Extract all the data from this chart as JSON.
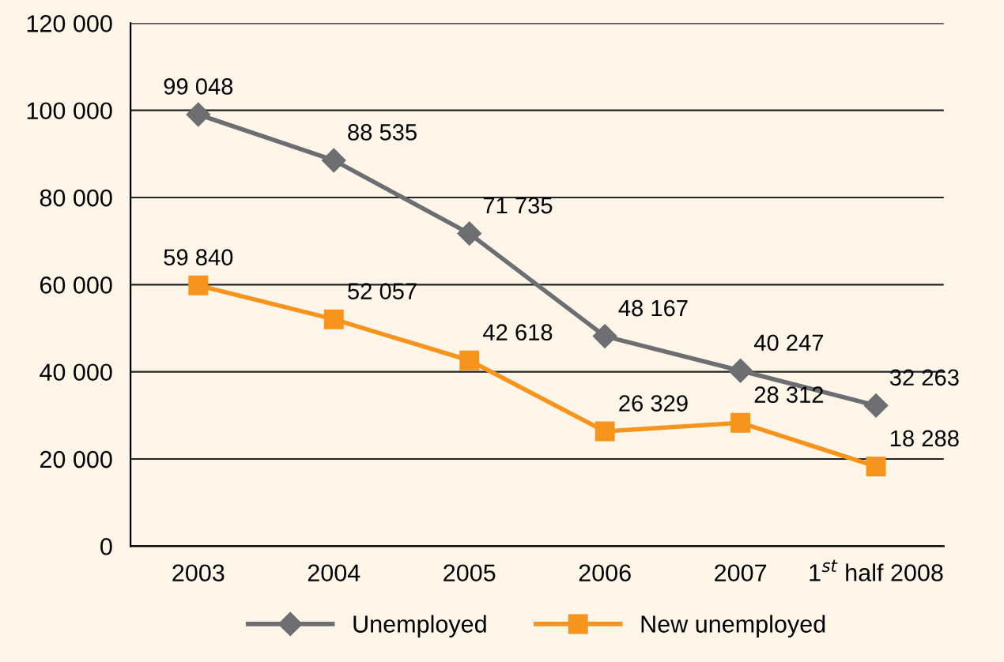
{
  "chart_data": {
    "type": "line",
    "categories": [
      "2003",
      "2004",
      "2005",
      "2006",
      "2007",
      "1$^{st}$ half 2008"
    ],
    "series": [
      {
        "name": "Unemployed",
        "color": "#6d6e71",
        "marker": "diamond",
        "values": [
          99048,
          88535,
          71735,
          48167,
          40247,
          32263
        ],
        "value_labels": [
          "99 048",
          "88 535",
          "71 735",
          "48 167",
          "40 247",
          "32 263"
        ]
      },
      {
        "name": "New unemployed",
        "color": "#f7941d",
        "marker": "square",
        "values": [
          59840,
          52057,
          42618,
          26329,
          28312,
          18288
        ],
        "value_labels": [
          "59 840",
          "52 057",
          "42 618",
          "26 329",
          "28 312",
          "18 288"
        ]
      }
    ],
    "ylim": [
      0,
      120000
    ],
    "yticks": [
      0,
      {
        "value": 20000,
        "label": "20 000"
      },
      {
        "value": 40000,
        "label": "40 000"
      },
      {
        "value": 60000,
        "label": "60 000"
      },
      {
        "value": 80000,
        "label": "80 000"
      },
      {
        "value": 100000,
        "label": "100 000"
      },
      {
        "value": 120000,
        "label": "120 000"
      }
    ],
    "grid": "y",
    "legend": "bottom",
    "line_style": "solid"
  }
}
